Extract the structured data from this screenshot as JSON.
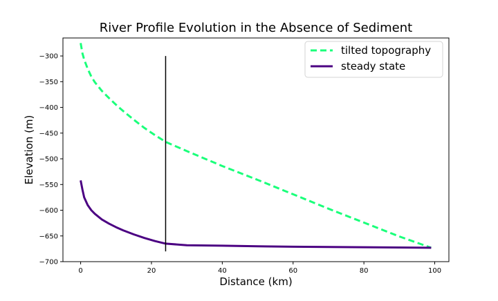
{
  "chart_data": {
    "type": "line",
    "title": "River Profile Evolution in the Absence of Sediment",
    "xlabel": "Distance (km)",
    "ylabel": "Elevation (m)",
    "xlim": [
      -5,
      104
    ],
    "ylim": [
      -700,
      -265
    ],
    "xticks": [
      0,
      20,
      40,
      60,
      80,
      100
    ],
    "yticks": [
      -300,
      -350,
      -400,
      -450,
      -500,
      -550,
      -600,
      -650,
      -700
    ],
    "grid": false,
    "legend_position": "top-right",
    "series": [
      {
        "name": "tilted topography",
        "style": "dashed",
        "color": "#1aff7a",
        "x": [
          0,
          0.5,
          1,
          2,
          3,
          4,
          6,
          8,
          10,
          12,
          15,
          18,
          21,
          24,
          30,
          40,
          50,
          60,
          70,
          80,
          90,
          99
        ],
        "y": [
          -275,
          -295,
          -307,
          -325,
          -340,
          -351,
          -368,
          -382,
          -395,
          -407,
          -424,
          -440,
          -454,
          -467,
          -485,
          -514,
          -541,
          -569,
          -597,
          -624,
          -651,
          -673
        ]
      },
      {
        "name": "steady state",
        "style": "solid",
        "color": "#4b0082",
        "x": [
          0,
          0.5,
          1,
          2,
          3,
          4,
          6,
          8,
          10,
          12,
          15,
          18,
          21,
          24,
          30,
          40,
          50,
          60,
          70,
          80,
          90,
          99
        ],
        "y": [
          -542,
          -560,
          -575,
          -590,
          -600,
          -607,
          -618,
          -626,
          -633,
          -639,
          -647,
          -654,
          -660,
          -665,
          -668,
          -669,
          -670,
          -671,
          -671.5,
          -672,
          -672.5,
          -673
        ]
      }
    ],
    "annotations": [
      {
        "type": "vertical-line",
        "color": "#000000",
        "x": 24,
        "y_start": -300,
        "y_end": -680
      }
    ]
  }
}
